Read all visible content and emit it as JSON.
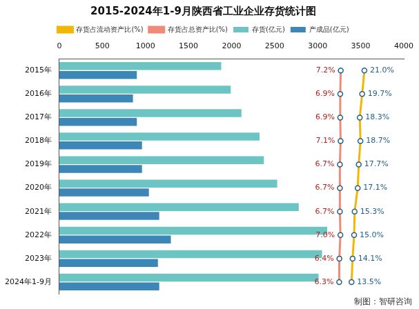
{
  "chart_data": {
    "type": "bar",
    "orientation": "horizontal",
    "title": "2015-2024年1-9月陕西省工业企业存货统计图",
    "annotations": [
      "制图：智研咨询"
    ],
    "categories": [
      "2015年",
      "2016年",
      "2017年",
      "2018年",
      "2019年",
      "2020年",
      "2021年",
      "2022年",
      "2023年",
      "2024年1-9月"
    ],
    "series": [
      {
        "name": "存货(亿元)",
        "type": "bar",
        "color": "#6cc5c3",
        "values": [
          1880,
          1990,
          2115,
          2325,
          2375,
          2530,
          2780,
          3110,
          3050,
          3010
        ]
      },
      {
        "name": "产成品(亿元)",
        "type": "bar",
        "color": "#3d86b8",
        "values": [
          900,
          855,
          900,
          960,
          960,
          1040,
          1160,
          1295,
          1145,
          1160
        ]
      },
      {
        "name": "存货占流动资产比(%)",
        "type": "line",
        "axis": "y2",
        "color": "#f2b705",
        "marker": "circle",
        "values": [
          21.0,
          19.7,
          18.3,
          18.7,
          17.7,
          17.1,
          15.3,
          15.0,
          14.1,
          13.5
        ],
        "value_labels": [
          "21.0%",
          "19.7%",
          "18.3%",
          "18.7%",
          "17.7%",
          "17.1%",
          "15.3%",
          "15.0%",
          "14.1%",
          "13.5%"
        ]
      },
      {
        "name": "存货占总资产比(%)",
        "type": "line",
        "axis": "y2",
        "color": "#f08a78",
        "marker": "circle",
        "values": [
          7.2,
          6.9,
          6.9,
          7.1,
          6.7,
          6.7,
          6.7,
          7.0,
          6.4,
          6.3
        ],
        "value_labels": [
          "7.2%",
          "6.9%",
          "6.9%",
          "7.1%",
          "6.7%",
          "6.7%",
          "6.7%",
          "7.0%",
          "6.4%",
          "6.3%"
        ]
      }
    ],
    "ylim": [
      0,
      4000
    ],
    "yticks": [
      0,
      500,
      1000,
      1500,
      2000,
      2500,
      3000,
      3500,
      4000
    ],
    "y2lim": [
      -157,
      44
    ],
    "grid": false,
    "legend": "top",
    "data_labels": true
  }
}
